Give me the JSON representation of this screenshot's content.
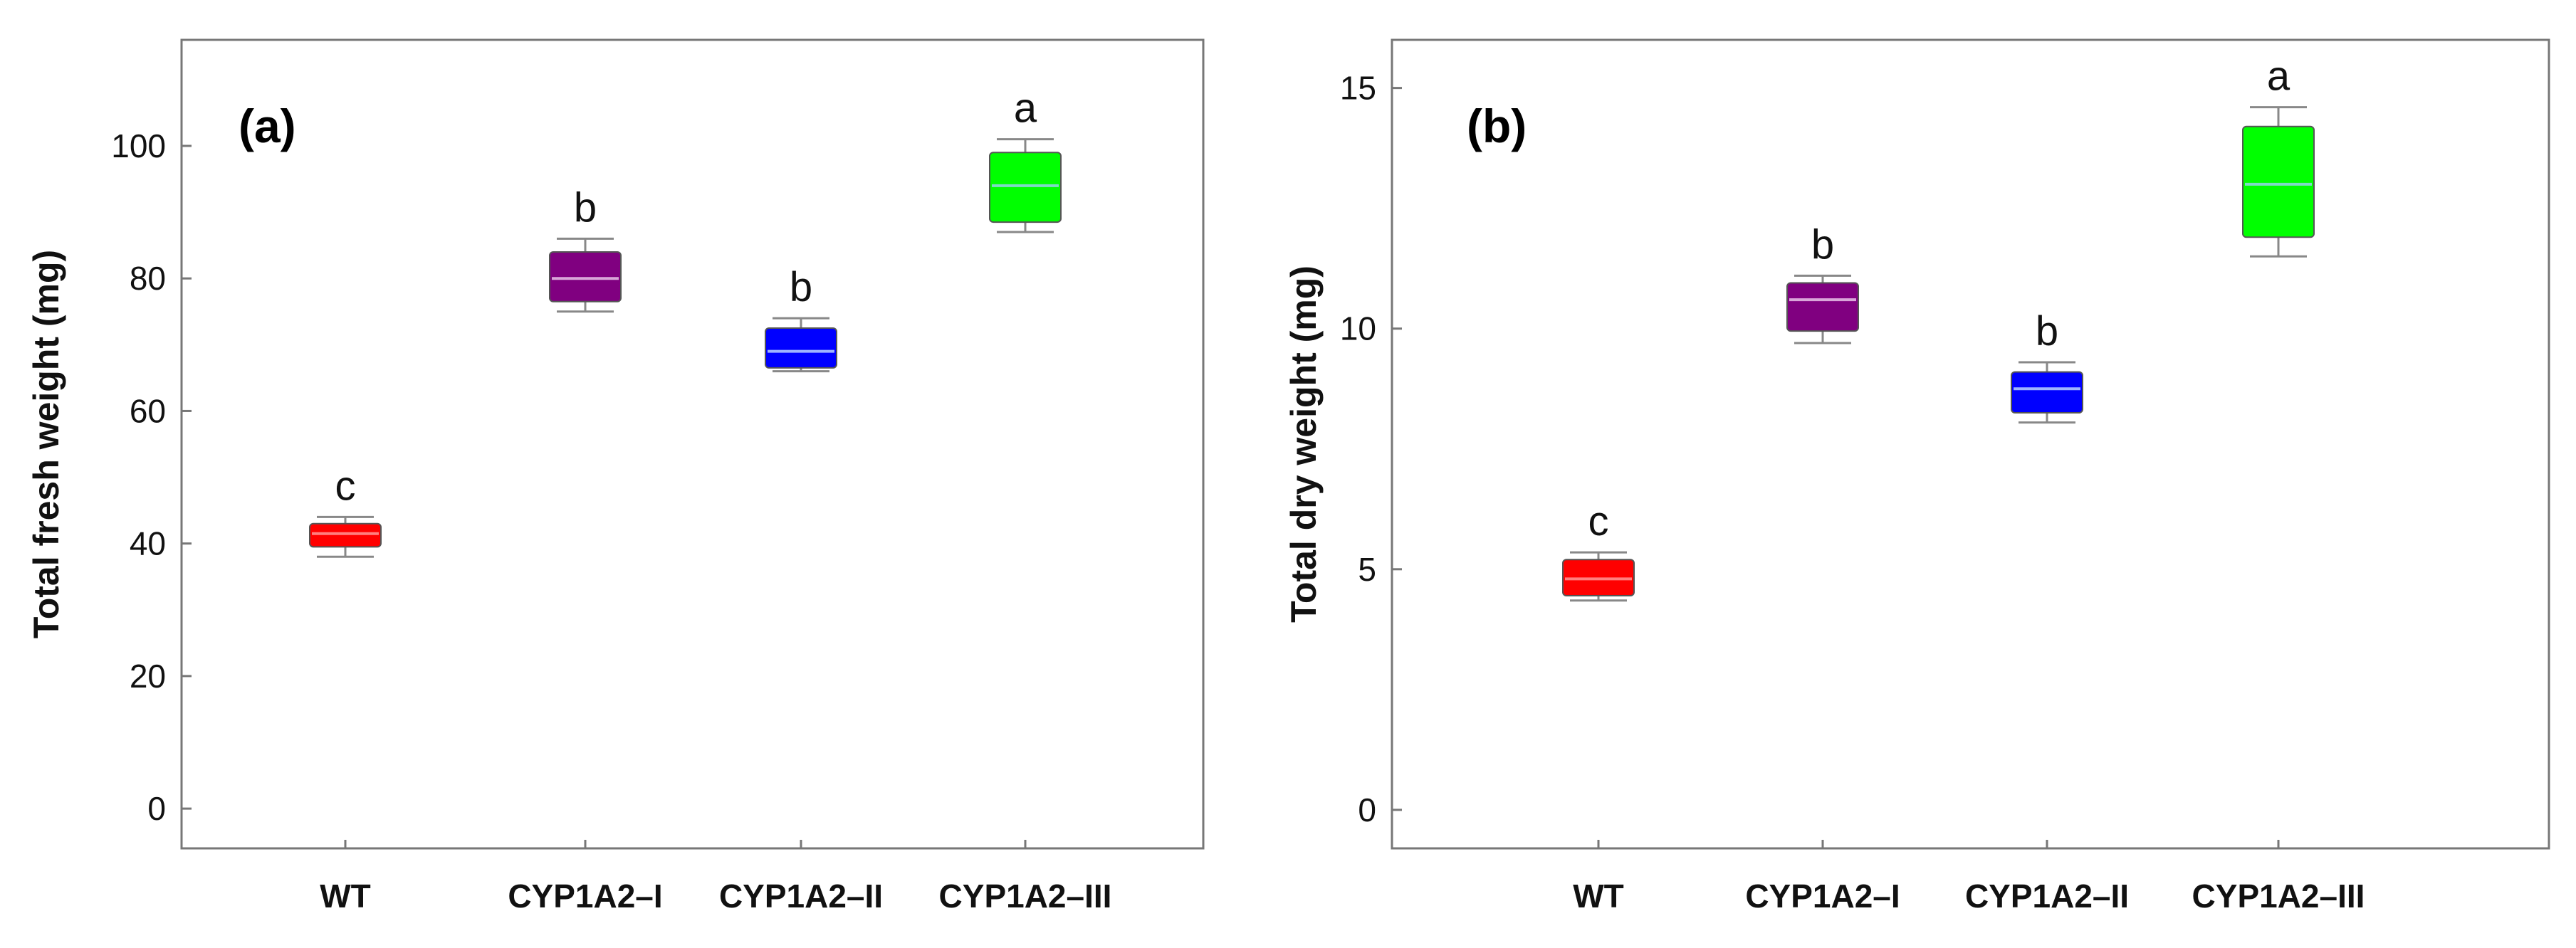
{
  "chart_data": [
    {
      "type": "box",
      "panel_label": "(a)",
      "ylabel": "Total fresh weight (mg)",
      "xlabel": "",
      "ylim": [
        -6,
        116
      ],
      "yticks": [
        0,
        20,
        40,
        60,
        80,
        100
      ],
      "categories": [
        "WT",
        "CYP1A2–I",
        "CYP1A2–II",
        "CYP1A2–III"
      ],
      "boxes": [
        {
          "category": "WT",
          "min": 38,
          "q1": 39.5,
          "median": 41.5,
          "q3": 43,
          "max": 44,
          "color": "#ff0000",
          "median_color": "#ff8080",
          "letter": "c"
        },
        {
          "category": "CYP1A2–I",
          "min": 75,
          "q1": 76.5,
          "median": 80,
          "q3": 84,
          "max": 86,
          "color": "#800080",
          "median_color": "#d9a6d9",
          "letter": "b"
        },
        {
          "category": "CYP1A2–II",
          "min": 66,
          "q1": 66.5,
          "median": 69,
          "q3": 72.5,
          "max": 74,
          "color": "#0000ff",
          "median_color": "#9fb4ff",
          "letter": "b"
        },
        {
          "category": "CYP1A2–III",
          "min": 87,
          "q1": 88.5,
          "median": 94,
          "q3": 99,
          "max": 101,
          "color": "#00ff00",
          "median_color": "#7fd9c8",
          "letter": "a"
        }
      ]
    },
    {
      "type": "box",
      "panel_label": "(b)",
      "ylabel": "Total dry weight (mg)",
      "xlabel": "",
      "ylim": [
        -0.8,
        16
      ],
      "yticks": [
        0,
        5,
        10,
        15
      ],
      "categories": [
        "WT",
        "CYP1A2–I",
        "CYP1A2–II",
        "CYP1A2–III"
      ],
      "boxes": [
        {
          "category": "WT",
          "min": 4.35,
          "q1": 4.45,
          "median": 4.8,
          "q3": 5.2,
          "max": 5.35,
          "color": "#ff0000",
          "median_color": "#ff8080",
          "letter": "c"
        },
        {
          "category": "CYP1A2–I",
          "min": 9.7,
          "q1": 9.95,
          "median": 10.6,
          "q3": 10.95,
          "max": 11.1,
          "color": "#800080",
          "median_color": "#d9a6d9",
          "letter": "b"
        },
        {
          "category": "CYP1A2–II",
          "min": 8.05,
          "q1": 8.25,
          "median": 8.75,
          "q3": 9.1,
          "max": 9.3,
          "color": "#0000ff",
          "median_color": "#9fb4ff",
          "letter": "b"
        },
        {
          "category": "CYP1A2–III",
          "min": 11.5,
          "q1": 11.9,
          "median": 13.0,
          "q3": 14.2,
          "max": 14.6,
          "color": "#00ff00",
          "median_color": "#7fd9c8",
          "letter": "a"
        }
      ]
    }
  ]
}
